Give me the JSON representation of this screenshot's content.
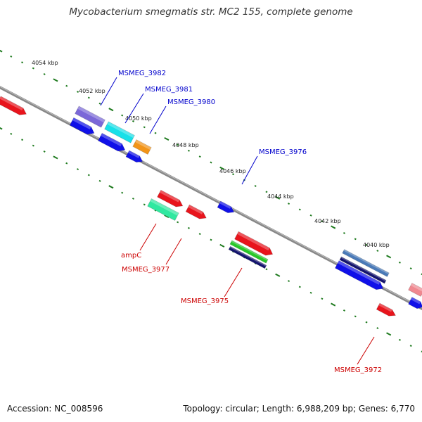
{
  "title": "Mycobacterium smegmatis str. MC2 155, complete genome",
  "footer": {
    "accession": "Accession: NC_008596",
    "summary": "Topology: circular; Length: 6,988,209 bp; Genes: 6,770"
  },
  "colors": {
    "axis": "#888888",
    "tick": "#1e7a1e",
    "forward_label": "#0000cc",
    "reverse_label": "#cc0000"
  },
  "axis_ticks": [
    {
      "label": "4054 kbp"
    },
    {
      "label": "4052 kbp"
    },
    {
      "label": "4050 kbp"
    },
    {
      "label": "4048 kbp"
    },
    {
      "label": "4046 kbp"
    },
    {
      "label": "4044 kbp"
    },
    {
      "label": "4042 kbp"
    },
    {
      "label": "4040 kbp"
    }
  ],
  "gene_labels": [
    {
      "name": "MSMEG_3982",
      "strand": "forward"
    },
    {
      "name": "MSMEG_3981",
      "strand": "forward"
    },
    {
      "name": "MSMEG_3980",
      "strand": "forward"
    },
    {
      "name": "MSMEG_3976",
      "strand": "forward"
    },
    {
      "name": "ampC",
      "strand": "reverse"
    },
    {
      "name": "MSMEG_3977",
      "strand": "reverse"
    },
    {
      "name": "MSMEG_3975",
      "strand": "reverse"
    },
    {
      "name": "MSMEG_3972",
      "strand": "reverse"
    }
  ],
  "features": [
    {
      "kind": "cds-reverse",
      "color": "#e8141c"
    },
    {
      "kind": "function-a",
      "color": "#7b68d8"
    },
    {
      "kind": "function-b",
      "color": "#18e0e8"
    },
    {
      "kind": "function-c",
      "color": "#f29418"
    },
    {
      "kind": "cds-forward",
      "color": "#1010e8"
    },
    {
      "kind": "cds-forward",
      "color": "#1010e8"
    },
    {
      "kind": "cds-forward",
      "color": "#1010e8"
    },
    {
      "kind": "cds-forward",
      "color": "#1010e8"
    },
    {
      "kind": "cds-reverse",
      "color": "#e8141c"
    },
    {
      "kind": "function-d",
      "color": "#30e8a0"
    },
    {
      "kind": "cds-reverse",
      "color": "#e8141c"
    },
    {
      "kind": "cds-reverse",
      "color": "#e8141c"
    },
    {
      "kind": "function-e",
      "color": "#28c828"
    },
    {
      "kind": "function-f",
      "color": "#14146e"
    },
    {
      "kind": "function-g",
      "color": "#4a7ab8"
    },
    {
      "kind": "function-f",
      "color": "#14146e"
    },
    {
      "kind": "cds-forward",
      "color": "#1010e8"
    },
    {
      "kind": "cds-reverse",
      "color": "#e8141c"
    },
    {
      "kind": "function-h",
      "color": "#f08890"
    },
    {
      "kind": "cds-forward",
      "color": "#1010e8"
    }
  ]
}
